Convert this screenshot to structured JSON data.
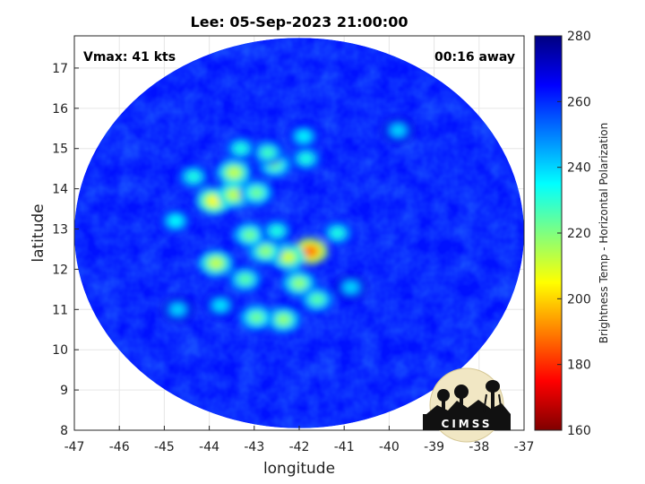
{
  "chart_data": {
    "type": "heatmap",
    "title": "Lee: 05-Sep-2023 21:00:00",
    "xlabel": "longitude",
    "ylabel": "latitude",
    "xlim": [
      -47,
      -37
    ],
    "ylim": [
      8,
      17.8
    ],
    "xticks": [
      -47,
      -46,
      -45,
      -44,
      -43,
      -42,
      -41,
      -40,
      -39,
      -38,
      -37
    ],
    "yticks": [
      8,
      9,
      10,
      11,
      12,
      13,
      14,
      15,
      16,
      17
    ],
    "grid": true,
    "annotations": {
      "vmax": "Vmax: 41 kts",
      "offset": "00:16 away"
    },
    "swath": {
      "center_lon": -42,
      "center_lat": 12.9,
      "radius_lon": 5.0,
      "radius_lat": 4.85,
      "background_value": 263
    },
    "features": [
      {
        "lon": -41.75,
        "lat": 12.45,
        "value": 188
      },
      {
        "lon": -42.25,
        "lat": 12.3,
        "value": 210
      },
      {
        "lon": -42.75,
        "lat": 12.45,
        "value": 218
      },
      {
        "lon": -43.1,
        "lat": 12.85,
        "value": 222
      },
      {
        "lon": -43.2,
        "lat": 11.75,
        "value": 225
      },
      {
        "lon": -42.0,
        "lat": 11.65,
        "value": 218
      },
      {
        "lon": -41.6,
        "lat": 11.25,
        "value": 225
      },
      {
        "lon": -42.35,
        "lat": 10.75,
        "value": 218
      },
      {
        "lon": -42.95,
        "lat": 10.8,
        "value": 222
      },
      {
        "lon": -43.85,
        "lat": 12.15,
        "value": 212
      },
      {
        "lon": -44.75,
        "lat": 13.2,
        "value": 235
      },
      {
        "lon": -43.9,
        "lat": 13.7,
        "value": 205
      },
      {
        "lon": -43.45,
        "lat": 13.85,
        "value": 212
      },
      {
        "lon": -43.45,
        "lat": 14.4,
        "value": 212
      },
      {
        "lon": -42.95,
        "lat": 13.9,
        "value": 222
      },
      {
        "lon": -42.55,
        "lat": 14.6,
        "value": 222
      },
      {
        "lon": -41.85,
        "lat": 14.75,
        "value": 232
      },
      {
        "lon": -42.7,
        "lat": 14.9,
        "value": 228
      },
      {
        "lon": -43.3,
        "lat": 15.0,
        "value": 232
      },
      {
        "lon": -41.9,
        "lat": 15.3,
        "value": 236
      },
      {
        "lon": -44.35,
        "lat": 14.3,
        "value": 232
      },
      {
        "lon": -39.8,
        "lat": 15.45,
        "value": 240
      },
      {
        "lon": -42.5,
        "lat": 12.95,
        "value": 232
      },
      {
        "lon": -41.15,
        "lat": 12.9,
        "value": 232
      },
      {
        "lon": -40.85,
        "lat": 11.55,
        "value": 240
      },
      {
        "lon": -43.75,
        "lat": 11.1,
        "value": 238
      },
      {
        "lon": -44.7,
        "lat": 11.0,
        "value": 240
      }
    ],
    "colorbar": {
      "label": "Brightness Temp - Horizontal Polarization",
      "min": 160,
      "max": 280,
      "ticks": [
        160,
        180,
        200,
        220,
        240,
        260,
        280
      ],
      "colormap": "jet"
    }
  },
  "logo": {
    "text": "CIMSS"
  }
}
